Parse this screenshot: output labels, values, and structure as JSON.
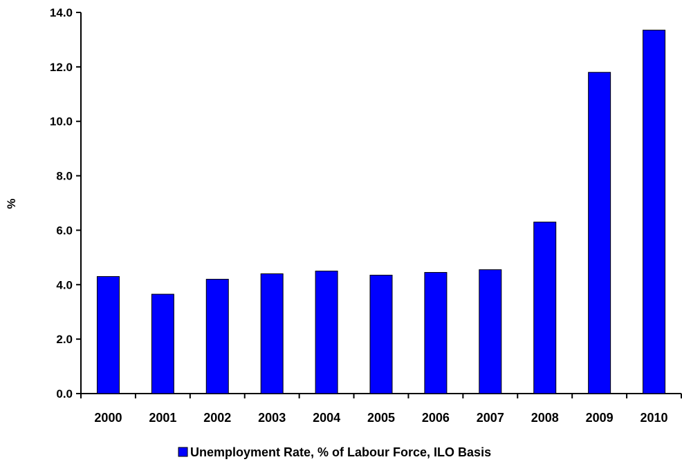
{
  "chart_data": {
    "type": "bar",
    "categories": [
      "2000",
      "2001",
      "2002",
      "2003",
      "2004",
      "2005",
      "2006",
      "2007",
      "2008",
      "2009",
      "2010"
    ],
    "series": [
      {
        "name": "Unemployment Rate, % of Labour Force, ILO Basis",
        "values": [
          4.3,
          3.65,
          4.2,
          4.4,
          4.5,
          4.35,
          4.45,
          4.55,
          6.3,
          11.8,
          13.35
        ]
      }
    ],
    "ylabel": "%",
    "xlabel": "",
    "title": "",
    "ylim": [
      0,
      14
    ],
    "yticks": [
      "0.0",
      "2.0",
      "4.0",
      "6.0",
      "8.0",
      "10.0",
      "12.0",
      "14.0"
    ],
    "grid": false,
    "legend": "bottom",
    "colors": {
      "bar": "#0000ff",
      "bar_outline": "#000000",
      "axis": "#000000"
    }
  }
}
